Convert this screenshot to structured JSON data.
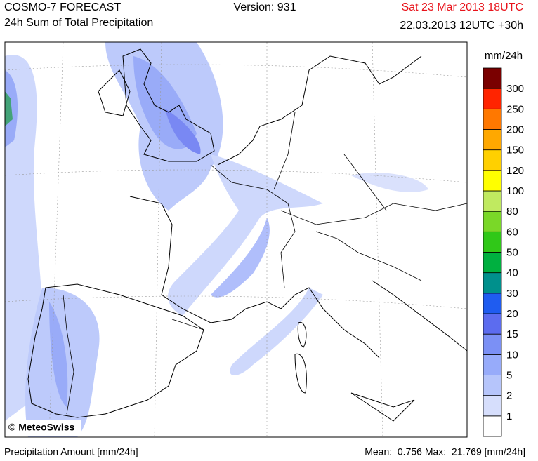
{
  "header": {
    "title": "COSMO-7 FORECAST",
    "subtitle": "24h Sum of Total Precipitation",
    "version": "Version: 931",
    "valid_time": "Sat 23 Mar 2013 18UTC",
    "run": "22.03.2013 12UTC +30h"
  },
  "legend": {
    "unit": "mm/24h",
    "labels": [
      "1",
      "2",
      "5",
      "10",
      "15",
      "20",
      "30",
      "40",
      "50",
      "60",
      "80",
      "100",
      "120",
      "150",
      "200",
      "250",
      "300"
    ],
    "colors": [
      "#ffffff",
      "#d6defc",
      "#b6c5fb",
      "#97abfa",
      "#7b90f5",
      "#5c6cef",
      "#1f5cf0",
      "#00908c",
      "#00b040",
      "#30c818",
      "#7ad828",
      "#c0ea60",
      "#ffff00",
      "#ffd000",
      "#ffa800",
      "#ff7800",
      "#ff2400",
      "#7a0000"
    ]
  },
  "map": {
    "credit": "© MeteoSwiss"
  },
  "footer": {
    "left": "Precipitation Amount [mm/24h]",
    "stats": "Mean:  0.756 Max:  21.769 [mm/24h]"
  }
}
